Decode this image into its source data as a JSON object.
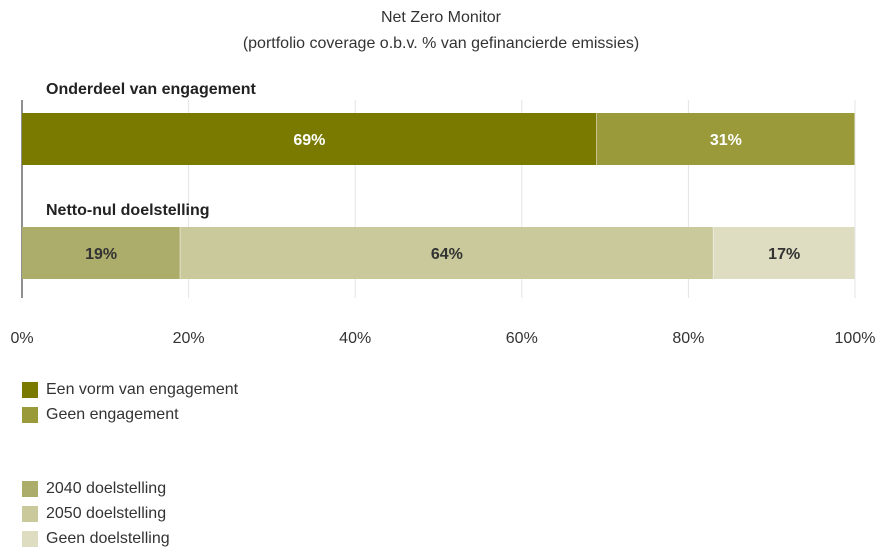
{
  "chart_data": {
    "type": "bar",
    "orientation": "horizontal",
    "stacked": true,
    "title": "Net Zero Monitor",
    "subtitle": "(portfolio coverage o.b.v. % van gefinancierde emissies)",
    "xlim": [
      0,
      100
    ],
    "x_ticks": [
      "0%",
      "20%",
      "40%",
      "60%",
      "80%",
      "100%"
    ],
    "grid": true,
    "legend_position": "bottom-left",
    "bars": [
      {
        "category": "Onderdeel van engagement",
        "segments": [
          {
            "name": "Een vorm van engagement",
            "value": 69,
            "label": "69%",
            "color": "#7a7a00",
            "label_color": "#ffffff"
          },
          {
            "name": "Geen engagement",
            "value": 31,
            "label": "31%",
            "color": "#9a9a3a",
            "label_color": "#ffffff"
          }
        ]
      },
      {
        "category": "Netto-nul doelstelling",
        "segments": [
          {
            "name": "2040 doelstelling",
            "value": 19,
            "label": "19%",
            "color": "#adad6b",
            "label_color": "#333333"
          },
          {
            "name": "2050 doelstelling",
            "value": 64,
            "label": "64%",
            "color": "#c9c99b",
            "label_color": "#333333"
          },
          {
            "name": "Geen doelstelling",
            "value": 17,
            "label": "17%",
            "color": "#deddc2",
            "label_color": "#333333"
          }
        ]
      }
    ],
    "legend_groups": [
      [
        {
          "label": "Een vorm van engagement",
          "color": "#7a7a00"
        },
        {
          "label": "Geen engagement",
          "color": "#9a9a3a"
        }
      ],
      [
        {
          "label": "2040 doelstelling",
          "color": "#adad6b"
        },
        {
          "label": "2050 doelstelling",
          "color": "#c9c99b"
        },
        {
          "label": "Geen doelstelling",
          "color": "#deddc2"
        }
      ]
    ]
  }
}
